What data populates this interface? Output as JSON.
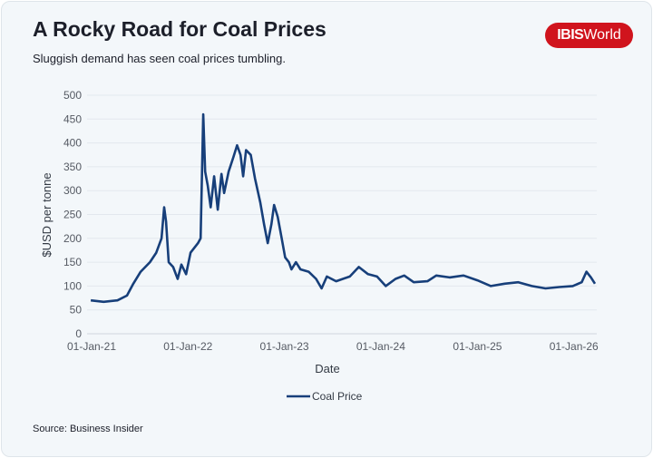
{
  "header": {
    "title": "A Rocky Road for Coal Prices",
    "subtitle": "Sluggish demand has seen coal prices tumbling.",
    "logo": "IBISWorld",
    "logo_bold": "IBIS",
    "logo_light": "World"
  },
  "footer": {
    "source": "Source: Business Insider"
  },
  "colors": {
    "line": "#173f7a",
    "logo": "#d0141d",
    "grid": "#e3e8ee"
  },
  "chart_data": {
    "type": "line",
    "title": "",
    "xlabel": "Date",
    "ylabel": "$USD per tonne",
    "ylim": [
      0,
      500
    ],
    "yticks": [
      0,
      50,
      100,
      150,
      200,
      250,
      300,
      350,
      400,
      450,
      500
    ],
    "xlim": [
      "2021-01-01",
      "2026-04-15"
    ],
    "xticks": [
      {
        "date": "2021-01-01",
        "label": "01-Jan-21"
      },
      {
        "date": "2022-01-01",
        "label": "01-Jan-22"
      },
      {
        "date": "2023-01-01",
        "label": "01-Jan-23"
      },
      {
        "date": "2024-01-01",
        "label": "01-Jan-24"
      },
      {
        "date": "2025-01-01",
        "label": "01-Jan-25"
      },
      {
        "date": "2026-01-01",
        "label": "01-Jan-26"
      }
    ],
    "grid": true,
    "legend": "bottom",
    "series": [
      {
        "name": "Coal Price",
        "points": [
          [
            "2021-01-15",
            70
          ],
          [
            "2021-03-05",
            67
          ],
          [
            "2021-04-26",
            70
          ],
          [
            "2021-06-01",
            80
          ],
          [
            "2021-06-25",
            105
          ],
          [
            "2021-07-23",
            130
          ],
          [
            "2021-08-27",
            150
          ],
          [
            "2021-09-20",
            170
          ],
          [
            "2021-10-10",
            200
          ],
          [
            "2021-10-20",
            265
          ],
          [
            "2021-10-27",
            235
          ],
          [
            "2021-11-06",
            150
          ],
          [
            "2021-11-23",
            140
          ],
          [
            "2021-12-10",
            115
          ],
          [
            "2021-12-24",
            145
          ],
          [
            "2022-01-11",
            125
          ],
          [
            "2022-01-28",
            170
          ],
          [
            "2022-02-25",
            190
          ],
          [
            "2022-03-07",
            200
          ],
          [
            "2022-03-17",
            460
          ],
          [
            "2022-03-24",
            340
          ],
          [
            "2022-04-03",
            310
          ],
          [
            "2022-04-14",
            265
          ],
          [
            "2022-04-27",
            330
          ],
          [
            "2022-05-11",
            260
          ],
          [
            "2022-05-25",
            335
          ],
          [
            "2022-06-04",
            295
          ],
          [
            "2022-06-21",
            340
          ],
          [
            "2022-07-09",
            370
          ],
          [
            "2022-07-23",
            395
          ],
          [
            "2022-08-05",
            375
          ],
          [
            "2022-08-15",
            330
          ],
          [
            "2022-08-26",
            385
          ],
          [
            "2022-09-13",
            375
          ],
          [
            "2022-09-29",
            325
          ],
          [
            "2022-10-19",
            275
          ],
          [
            "2022-11-02",
            230
          ],
          [
            "2022-11-16",
            190
          ],
          [
            "2022-11-30",
            230
          ],
          [
            "2022-12-10",
            270
          ],
          [
            "2022-12-24",
            245
          ],
          [
            "2023-01-08",
            200
          ],
          [
            "2023-01-21",
            160
          ],
          [
            "2023-02-04",
            150
          ],
          [
            "2023-02-14",
            135
          ],
          [
            "2023-03-03",
            150
          ],
          [
            "2023-03-20",
            135
          ],
          [
            "2023-04-20",
            130
          ],
          [
            "2023-05-18",
            115
          ],
          [
            "2023-06-08",
            95
          ],
          [
            "2023-06-28",
            120
          ],
          [
            "2023-08-02",
            110
          ],
          [
            "2023-09-23",
            120
          ],
          [
            "2023-10-27",
            140
          ],
          [
            "2023-12-01",
            125
          ],
          [
            "2024-01-04",
            120
          ],
          [
            "2024-02-06",
            100
          ],
          [
            "2024-03-14",
            115
          ],
          [
            "2024-04-16",
            122
          ],
          [
            "2024-05-22",
            108
          ],
          [
            "2024-07-13",
            110
          ],
          [
            "2024-08-15",
            122
          ],
          [
            "2024-10-05",
            118
          ],
          [
            "2024-11-27",
            122
          ],
          [
            "2025-01-18",
            112
          ],
          [
            "2025-03-10",
            100
          ],
          [
            "2025-05-01",
            105
          ],
          [
            "2025-06-22",
            108
          ],
          [
            "2025-08-12",
            100
          ],
          [
            "2025-10-03",
            95
          ],
          [
            "2025-11-24",
            98
          ],
          [
            "2026-01-14",
            100
          ],
          [
            "2026-02-17",
            108
          ],
          [
            "2026-03-07",
            130
          ],
          [
            "2026-03-24",
            118
          ],
          [
            "2026-04-08",
            105
          ]
        ]
      }
    ]
  }
}
